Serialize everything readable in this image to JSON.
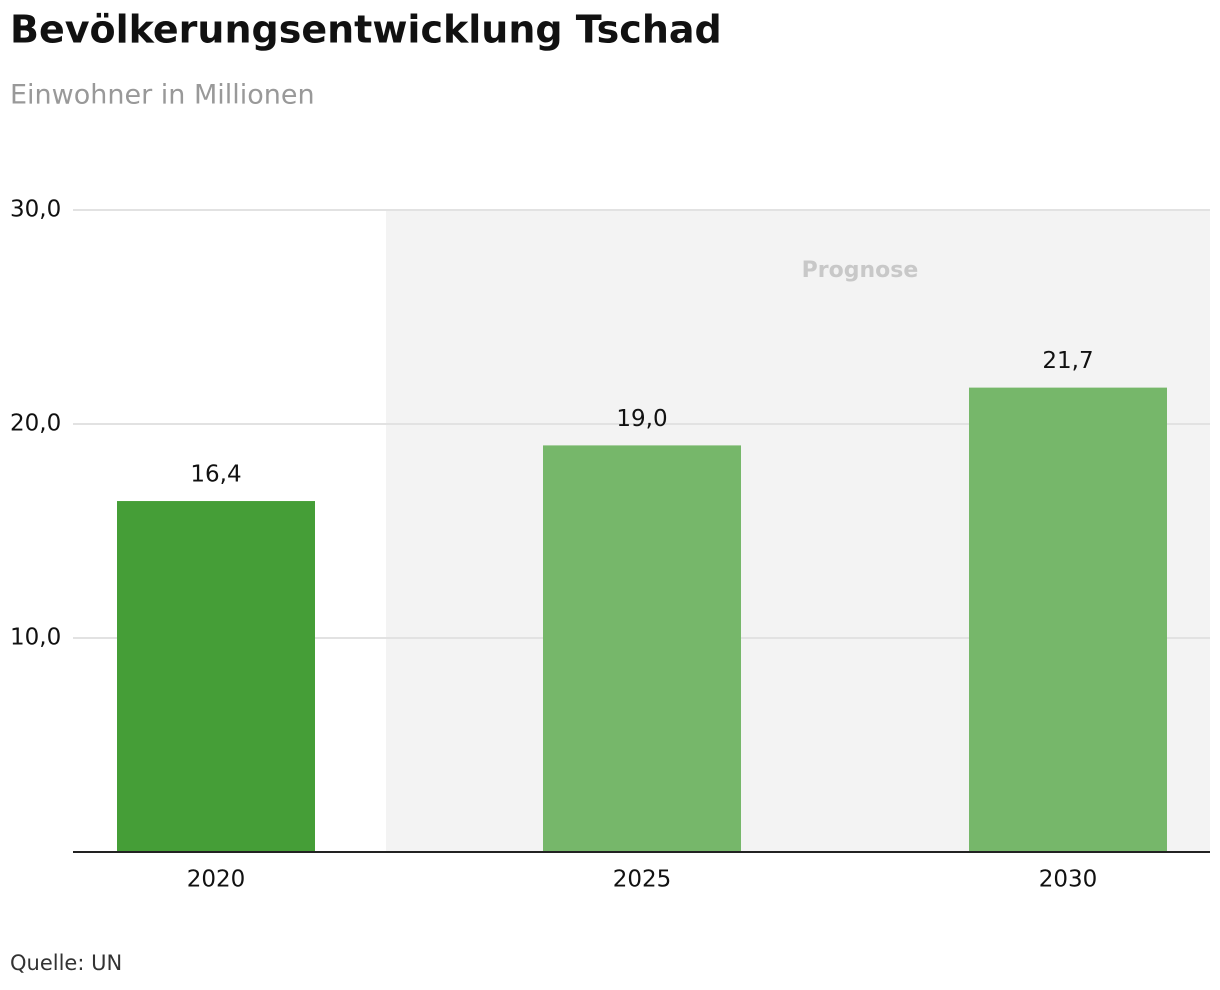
{
  "chart_data": {
    "type": "bar",
    "title": "Bevölkerungsentwicklung Tschad",
    "subtitle": "Einwohner in Millionen",
    "categories": [
      "2020",
      "2025",
      "2030"
    ],
    "values": [
      16.4,
      19.0,
      21.7
    ],
    "value_labels": [
      "16,4",
      "19,0",
      "21,7"
    ],
    "colors": [
      "#459e37",
      "#76b76a",
      "#76b76a"
    ],
    "ylim": [
      0,
      30
    ],
    "yticks": [
      {
        "value": 10,
        "label": "10,0"
      },
      {
        "value": 20,
        "label": "20,0"
      },
      {
        "value": 30,
        "label": "30,0"
      }
    ],
    "grid": true,
    "annotation": "Prognose",
    "source": "Quelle: UN"
  }
}
